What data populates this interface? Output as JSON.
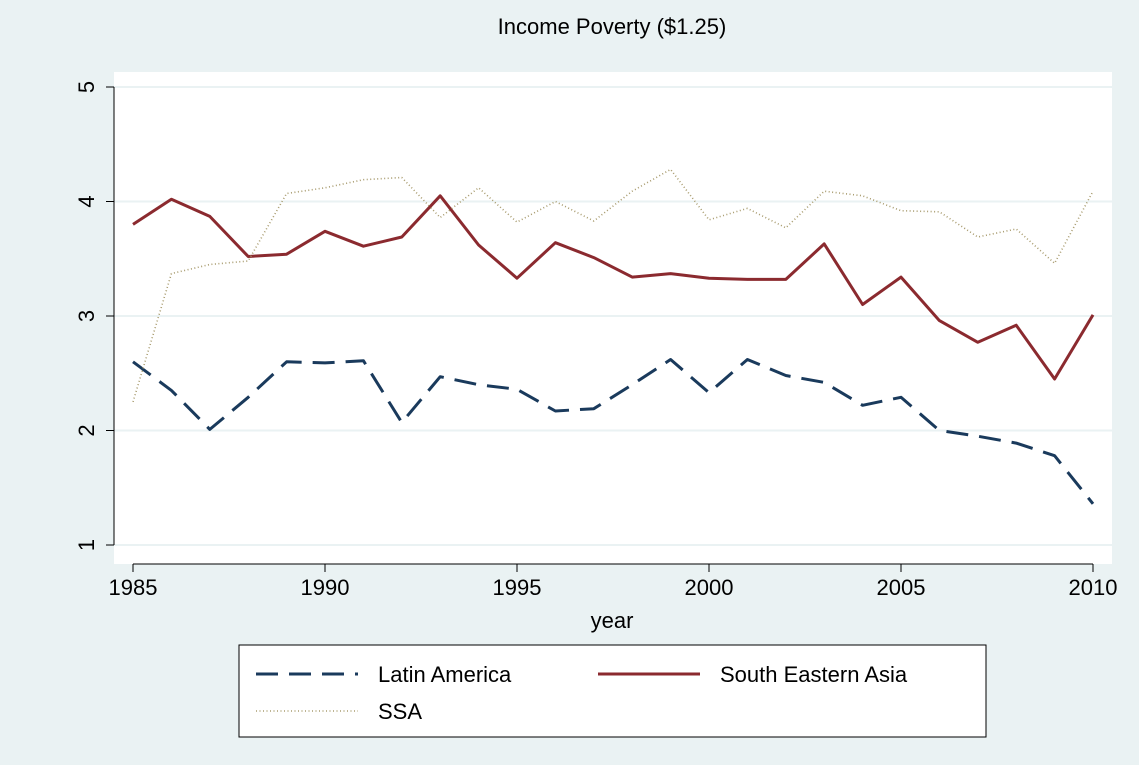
{
  "chart_data": {
    "type": "line",
    "title": "Income Poverty ($1.25)",
    "xlabel": "year",
    "ylabel": "",
    "xlim": [
      1985,
      2010
    ],
    "ylim": [
      1,
      5
    ],
    "xticks": [
      1985,
      1990,
      1995,
      2000,
      2005,
      2010
    ],
    "yticks": [
      1,
      2,
      3,
      4,
      5
    ],
    "grid": "horizontal",
    "legend_position": "bottom",
    "x": [
      1985,
      1986,
      1987,
      1988,
      1989,
      1990,
      1991,
      1992,
      1993,
      1994,
      1995,
      1996,
      1997,
      1998,
      1999,
      2000,
      2001,
      2002,
      2003,
      2004,
      2005,
      2006,
      2007,
      2008,
      2009,
      2010
    ],
    "series": [
      {
        "name": "Latin America",
        "color": "#1a3a5c",
        "style": "dashed",
        "values": [
          2.6,
          2.35,
          2.01,
          2.29,
          2.6,
          2.59,
          2.61,
          2.07,
          2.47,
          2.4,
          2.36,
          2.17,
          2.19,
          2.4,
          2.62,
          2.33,
          2.62,
          2.48,
          2.42,
          2.22,
          2.29,
          2.0,
          1.95,
          1.89,
          1.78,
          1.36
        ]
      },
      {
        "name": "South Eastern Asia",
        "color": "#8b2a2f",
        "style": "solid",
        "values": [
          3.8,
          4.02,
          3.87,
          3.52,
          3.54,
          3.74,
          3.61,
          3.69,
          4.05,
          3.62,
          3.33,
          3.64,
          3.51,
          3.34,
          3.37,
          3.33,
          3.32,
          3.32,
          3.63,
          3.1,
          3.34,
          2.96,
          2.77,
          2.92,
          2.45,
          3.01
        ]
      },
      {
        "name": "SSA",
        "color": "#a89b6e",
        "style": "dotted",
        "values": [
          2.25,
          3.37,
          3.45,
          3.48,
          4.07,
          4.12,
          4.19,
          4.21,
          3.86,
          4.12,
          3.82,
          4.0,
          3.83,
          4.09,
          4.28,
          3.84,
          3.94,
          3.77,
          4.09,
          4.05,
          3.92,
          3.91,
          3.69,
          3.76,
          3.46,
          4.09
        ]
      }
    ]
  }
}
